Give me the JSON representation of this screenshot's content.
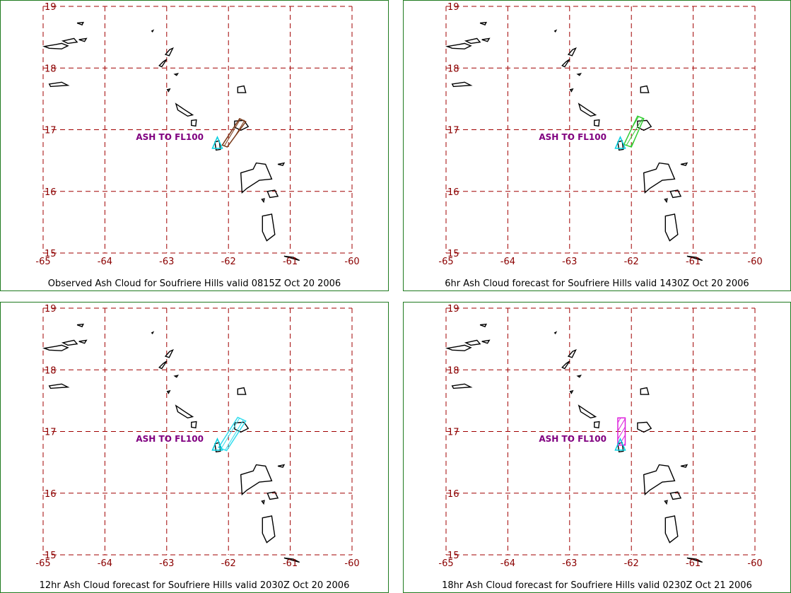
{
  "colors": {
    "border": "#1f7a1f",
    "grid": "#a00000",
    "tick_labels": "#8b0000",
    "ash_label": "#800080",
    "volcano_marker": "#00cfe0"
  },
  "lat_labels": [
    "19",
    "18",
    "17",
    "16",
    "15"
  ],
  "lon_labels": [
    "-65",
    "-64",
    "-63",
    "-62",
    "-61",
    "-60"
  ],
  "panels": [
    {
      "caption": "Observed Ash Cloud for Soufriere  Hills valid 0815Z Oct 20 2006",
      "ash_label": "ASH TO FL100",
      "ash_color": "#7a3a1a",
      "ash_polygon": [
        [
          -62.1,
          16.75
        ],
        [
          -61.82,
          17.18
        ],
        [
          -61.72,
          17.13
        ],
        [
          -62.02,
          16.72
        ]
      ]
    },
    {
      "caption": "6hr Ash Cloud forecast for Soufriere  Hills valid 1430Z Oct 20 2006",
      "ash_label": "ASH TO FL100",
      "ash_color": "#33cc33",
      "ash_polygon": [
        [
          -62.12,
          16.76
        ],
        [
          -61.9,
          17.22
        ],
        [
          -61.8,
          17.18
        ],
        [
          -62.0,
          16.72
        ]
      ]
    },
    {
      "caption": "12hr Ash Cloud forecast for Soufriere  Hills valid 2030Z Oct 20 2006",
      "ash_label": "ASH TO FL100",
      "ash_color": "#33ddee",
      "ash_polygon": [
        [
          -62.16,
          16.74
        ],
        [
          -61.85,
          17.23
        ],
        [
          -61.72,
          17.17
        ],
        [
          -62.03,
          16.69
        ]
      ]
    },
    {
      "caption": "18hr Ash Cloud forecast for Soufriere  Hills valid 0230Z Oct 21 2006",
      "ash_label": "ASH TO FL100",
      "ash_color": "#dd22dd",
      "ash_polygon": [
        [
          -62.22,
          16.78
        ],
        [
          -62.22,
          17.22
        ],
        [
          -62.1,
          17.22
        ],
        [
          -62.1,
          16.78
        ]
      ]
    }
  ],
  "volcano": {
    "lon": -62.18,
    "lat": 16.72
  },
  "islands": [
    [
      [
        -64.98,
        18.35
      ],
      [
        -64.8,
        18.38
      ],
      [
        -64.7,
        18.4
      ],
      [
        -64.6,
        18.36
      ],
      [
        -64.7,
        18.31
      ],
      [
        -64.9,
        18.32
      ]
    ],
    [
      [
        -64.68,
        18.44
      ],
      [
        -64.5,
        18.48
      ],
      [
        -64.45,
        18.42
      ],
      [
        -64.6,
        18.4
      ]
    ],
    [
      [
        -64.42,
        18.46
      ],
      [
        -64.3,
        18.48
      ],
      [
        -64.33,
        18.43
      ]
    ],
    [
      [
        -64.45,
        18.73
      ],
      [
        -64.35,
        18.74
      ],
      [
        -64.37,
        18.7
      ]
    ],
    [
      [
        -64.9,
        17.74
      ],
      [
        -64.7,
        17.77
      ],
      [
        -64.6,
        17.72
      ],
      [
        -64.88,
        17.7
      ]
    ],
    [
      [
        -63.06,
        18.1
      ],
      [
        -63.0,
        18.14
      ],
      [
        -63.08,
        18.02
      ],
      [
        -63.12,
        18.04
      ]
    ],
    [
      [
        -62.95,
        18.3
      ],
      [
        -62.9,
        18.32
      ],
      [
        -62.96,
        18.2
      ],
      [
        -63.02,
        18.22
      ]
    ],
    [
      [
        -62.87,
        17.9
      ],
      [
        -62.82,
        17.91
      ],
      [
        -62.84,
        17.88
      ]
    ],
    [
      [
        -63.24,
        18.6
      ],
      [
        -63.22,
        18.61
      ],
      [
        -63.23,
        18.59
      ]
    ],
    [
      [
        -62.99,
        17.65
      ],
      [
        -62.95,
        17.66
      ],
      [
        -62.97,
        17.62
      ]
    ],
    [
      [
        -62.85,
        17.42
      ],
      [
        -62.72,
        17.33
      ],
      [
        -62.58,
        17.24
      ],
      [
        -62.66,
        17.22
      ],
      [
        -62.82,
        17.32
      ]
    ],
    [
      [
        -62.6,
        17.15
      ],
      [
        -62.52,
        17.16
      ],
      [
        -62.53,
        17.06
      ],
      [
        -62.6,
        17.07
      ]
    ],
    [
      [
        -61.85,
        17.69
      ],
      [
        -61.75,
        17.71
      ],
      [
        -61.72,
        17.6
      ],
      [
        -61.85,
        17.6
      ]
    ],
    [
      [
        -61.9,
        17.14
      ],
      [
        -61.75,
        17.15
      ],
      [
        -61.68,
        17.05
      ],
      [
        -61.8,
        16.99
      ],
      [
        -61.9,
        17.04
      ]
    ],
    [
      [
        -62.22,
        16.8
      ],
      [
        -62.15,
        16.82
      ],
      [
        -62.13,
        16.68
      ],
      [
        -62.2,
        16.67
      ]
    ],
    [
      [
        -61.8,
        16.3
      ],
      [
        -61.6,
        16.36
      ],
      [
        -61.55,
        16.46
      ],
      [
        -61.4,
        16.44
      ],
      [
        -61.3,
        16.2
      ],
      [
        -61.5,
        16.18
      ],
      [
        -61.7,
        16.05
      ],
      [
        -61.78,
        15.98
      ]
    ],
    [
      [
        -61.2,
        16.44
      ],
      [
        -61.1,
        16.46
      ],
      [
        -61.12,
        16.42
      ]
    ],
    [
      [
        -61.37,
        16.0
      ],
      [
        -61.25,
        16.02
      ],
      [
        -61.2,
        15.92
      ],
      [
        -61.33,
        15.9
      ]
    ],
    [
      [
        -61.46,
        15.87
      ],
      [
        -61.42,
        15.88
      ],
      [
        -61.43,
        15.83
      ]
    ],
    [
      [
        -61.45,
        15.6
      ],
      [
        -61.3,
        15.63
      ],
      [
        -61.25,
        15.3
      ],
      [
        -61.38,
        15.2
      ],
      [
        -61.45,
        15.35
      ]
    ],
    [
      [
        -61.1,
        14.95
      ],
      [
        -60.95,
        14.93
      ],
      [
        -60.85,
        14.88
      ]
    ]
  ]
}
